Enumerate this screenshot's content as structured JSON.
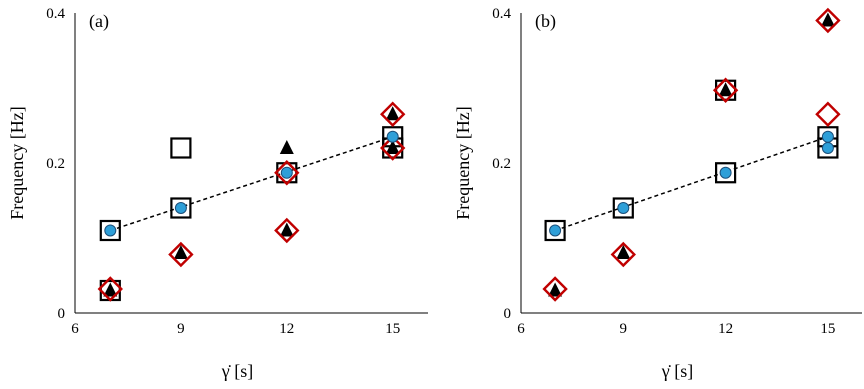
{
  "chart_data": [
    {
      "type": "scatter",
      "panel_label": "(a)",
      "xlabel": "γ̇ [s]",
      "ylabel": "Frequency [Hz]",
      "xlim": [
        6,
        16
      ],
      "ylim": [
        0,
        0.4
      ],
      "xticks": [
        "6",
        "9",
        "12",
        "15"
      ],
      "yticks": [
        "0",
        "0.2",
        "0.4"
      ],
      "grid": false,
      "series": [
        {
          "marker": "square",
          "points": [
            [
              7,
              0.11
            ],
            [
              7,
              0.03
            ],
            [
              9,
              0.14
            ],
            [
              9,
              0.22
            ],
            [
              12,
              0.187
            ],
            [
              15,
              0.235
            ],
            [
              15,
              0.22
            ]
          ]
        },
        {
          "marker": "triangle",
          "points": [
            [
              7,
              0.03
            ],
            [
              9,
              0.08
            ],
            [
              12,
              0.22
            ],
            [
              12,
              0.11
            ],
            [
              15,
              0.265
            ],
            [
              15,
              0.22
            ]
          ]
        },
        {
          "marker": "diamond",
          "points": [
            [
              7,
              0.032
            ],
            [
              9,
              0.078
            ],
            [
              12,
              0.187
            ],
            [
              12,
              0.11
            ],
            [
              15,
              0.265
            ],
            [
              15,
              0.22
            ]
          ]
        },
        {
          "marker": "circle",
          "points": [
            [
              7,
              0.11
            ],
            [
              9,
              0.14
            ],
            [
              12,
              0.187
            ],
            [
              15,
              0.235
            ]
          ]
        }
      ],
      "trendline": {
        "x": [
          7,
          15
        ],
        "y": [
          0.11,
          0.235
        ],
        "style": "dashed"
      }
    },
    {
      "type": "scatter",
      "panel_label": "(b)",
      "xlabel": "γ̇ [s]",
      "ylabel": "Frequency [Hz]",
      "xlim": [
        6,
        16
      ],
      "ylim": [
        0,
        0.4
      ],
      "xticks": [
        "6",
        "9",
        "12",
        "15"
      ],
      "yticks": [
        "0",
        "0.2",
        "0.4"
      ],
      "grid": false,
      "series": [
        {
          "marker": "square",
          "points": [
            [
              7,
              0.11
            ],
            [
              9,
              0.14
            ],
            [
              12,
              0.187
            ],
            [
              12,
              0.297
            ],
            [
              15,
              0.235
            ],
            [
              15,
              0.22
            ]
          ]
        },
        {
          "marker": "triangle",
          "points": [
            [
              7,
              0.03
            ],
            [
              9,
              0.08
            ],
            [
              12,
              0.297
            ],
            [
              15,
              0.39
            ]
          ]
        },
        {
          "marker": "diamond",
          "points": [
            [
              7,
              0.032
            ],
            [
              9,
              0.078
            ],
            [
              12,
              0.297
            ],
            [
              15,
              0.39
            ],
            [
              15,
              0.265
            ]
          ]
        },
        {
          "marker": "circle",
          "points": [
            [
              7,
              0.11
            ],
            [
              9,
              0.14
            ],
            [
              12,
              0.187
            ],
            [
              15,
              0.235
            ],
            [
              15,
              0.22
            ]
          ]
        }
      ],
      "trendline": {
        "x": [
          7,
          15
        ],
        "y": [
          0.11,
          0.235
        ],
        "style": "dashed"
      }
    }
  ],
  "colors": {
    "square_stroke": "#000000",
    "triangle_fill": "#000000",
    "diamond_stroke": "#c00000",
    "circle_fill": "#2e9fd8",
    "circle_stroke": "#1a4f7a",
    "axis": "#000000"
  }
}
